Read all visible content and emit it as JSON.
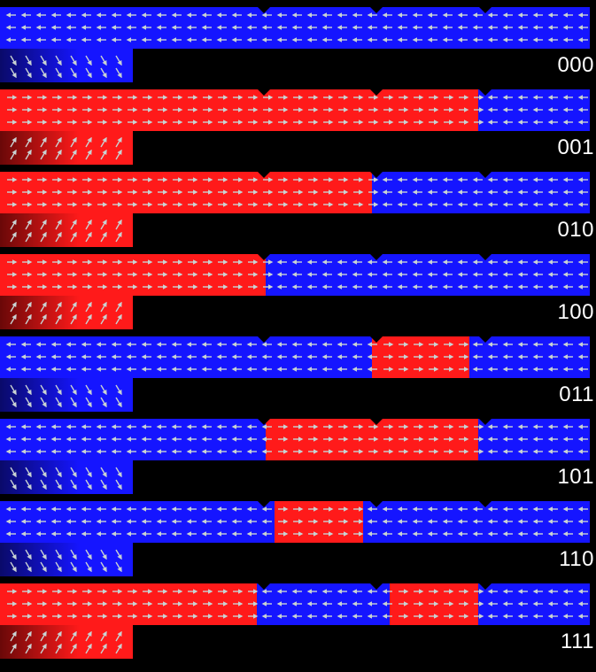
{
  "panels": [
    {
      "label": "000",
      "color_blue": "#0a00f5",
      "color_red": "#f00a0a"
    },
    {
      "label": "001"
    },
    {
      "label": "010"
    },
    {
      "label": "100"
    },
    {
      "label": "011"
    },
    {
      "label": "101"
    },
    {
      "label": "110"
    },
    {
      "label": "111"
    }
  ],
  "colors": {
    "background": "#000000",
    "magnetization_left": "#1515ff",
    "magnetization_right": "#ff1a1a",
    "arrow": "#c8d2d2",
    "label_text": "#ffffff"
  }
}
